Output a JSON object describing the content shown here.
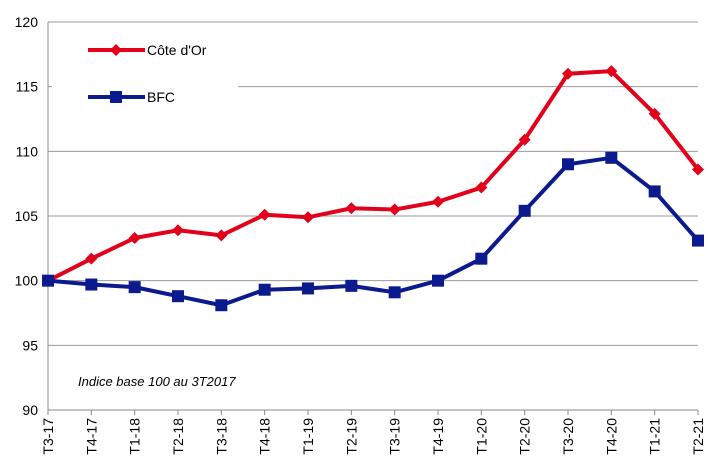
{
  "chart_data": {
    "type": "line",
    "annotation": "Indice base 100 au 3T2017",
    "categories": [
      "T3-17",
      "T4-17",
      "T1-18",
      "T2-18",
      "T3-18",
      "T4-18",
      "T1-19",
      "T2-19",
      "T3-19",
      "T4-19",
      "T1-20",
      "T2-20",
      "T3-20",
      "T4-20",
      "T1-21",
      "T2-21"
    ],
    "series": [
      {
        "name": "Côte d'Or",
        "color": "#e2001a",
        "marker": "diamond",
        "values": [
          100,
          101.7,
          103.3,
          103.9,
          103.5,
          105.1,
          104.9,
          105.6,
          105.5,
          106.1,
          107.2,
          110.9,
          116.0,
          116.2,
          112.9,
          108.6
        ]
      },
      {
        "name": "BFC",
        "color": "#0b1a8c",
        "marker": "square",
        "values": [
          100,
          99.7,
          99.5,
          98.8,
          98.1,
          99.3,
          99.4,
          99.6,
          99.1,
          100,
          101.7,
          105.4,
          109.0,
          109.5,
          106.9,
          103.1
        ]
      }
    ],
    "ylim": [
      90,
      120
    ],
    "yticks": [
      90,
      95,
      100,
      105,
      110,
      115,
      120
    ],
    "grid": true
  }
}
